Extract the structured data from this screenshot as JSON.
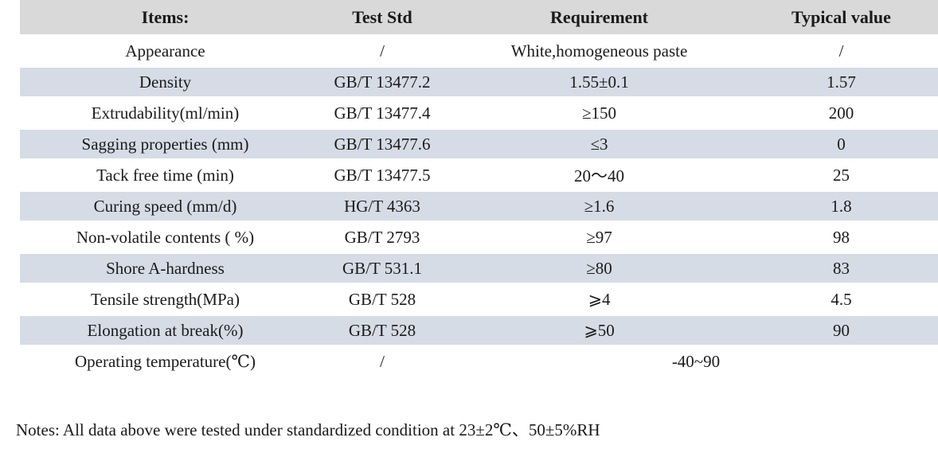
{
  "table": {
    "headers": [
      "Items:",
      "Test Std",
      "Requirement",
      "Typical value"
    ],
    "rows": [
      {
        "item": "Appearance",
        "std": "/",
        "req": "White,homogeneous paste",
        "val": "/"
      },
      {
        "item": "Density",
        "std": "GB/T 13477.2",
        "req": "1.55±0.1",
        "val": "1.57"
      },
      {
        "item": "Extrudability(ml/min)",
        "std": "GB/T 13477.4",
        "req": "≥150",
        "val": "200"
      },
      {
        "item": "Sagging properties (mm)",
        "std": "GB/T 13477.6",
        "req": "≤3",
        "val": "0"
      },
      {
        "item": "Tack free time (min)",
        "std": "GB/T 13477.5",
        "req": "20～40",
        "val": "25"
      },
      {
        "item": "Curing speed (mm/d)",
        "std": "HG/T 4363",
        "req": "≥1.6",
        "val": "1.8"
      },
      {
        "item": "Non-volatile contents ( %)",
        "std": "GB/T 2793",
        "req": "≥97",
        "val": "98"
      },
      {
        "item": "Shore A-hardness",
        "std": "GB/T 531.1",
        "req": "≥80",
        "val": "83"
      },
      {
        "item": "Tensile strength(MPa)",
        "std": "GB/T 528",
        "req": "⩾4",
        "val": "4.5"
      },
      {
        "item": "Elongation at break(%)",
        "std": "GB/T 528",
        "req": "⩾50",
        "val": "90"
      },
      {
        "item": "Operating temperature(℃)",
        "std": "/",
        "req": "-40~90",
        "val": "",
        "req_span": 2
      }
    ]
  },
  "notes": "Notes: All data above were tested under standardized condition at 23±2℃、50±5%RH",
  "colors": {
    "header_bg": "#d9d9d9",
    "stripe_bg": "#d6dce6"
  }
}
